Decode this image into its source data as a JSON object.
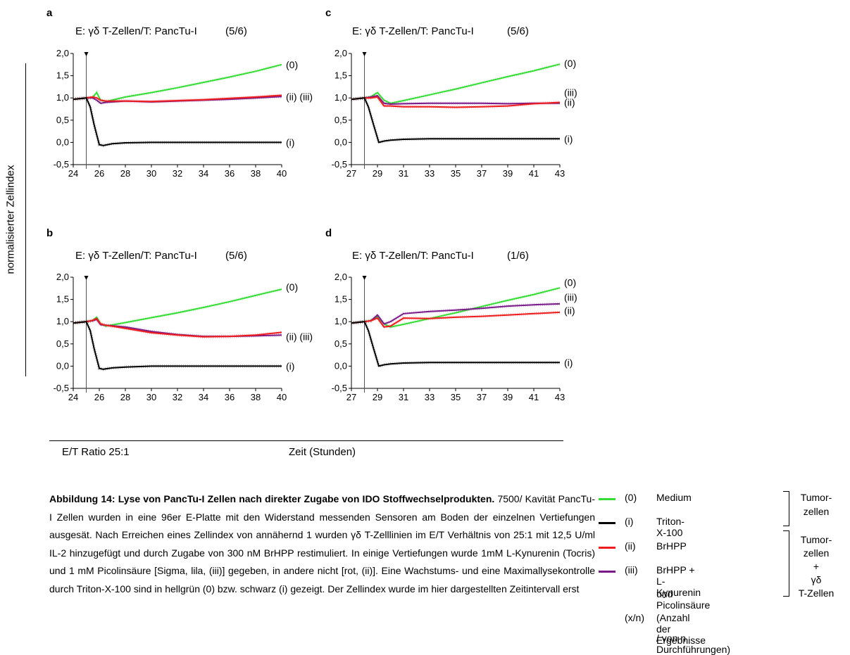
{
  "ylabel": "normalisierter Zellindex",
  "xlabel": "Zeit (Stunden)",
  "ratio_label": "E/T Ratio 25:1",
  "chart_data": [
    {
      "panel": "a",
      "type": "line",
      "title": "E: γδ T-Zellen/T: PancTu-I",
      "count": "(5/6)",
      "xlim": [
        24,
        40
      ],
      "xticks": [
        "24",
        "26",
        "28",
        "30",
        "32",
        "34",
        "36",
        "38",
        "40"
      ],
      "ylim": [
        -0.5,
        2.0
      ],
      "yticks": [
        "-0,5",
        "0,0",
        "0,5",
        "1,0",
        "1,5",
        "2,0"
      ],
      "marker_x": 25,
      "series": [
        {
          "label": "(0)",
          "color": "#33dd33",
          "x": [
            24,
            25,
            25.5,
            25.8,
            26.1,
            26.5,
            28,
            30,
            32,
            34,
            36,
            38,
            40
          ],
          "y": [
            0.97,
            1.0,
            1.02,
            1.12,
            0.95,
            0.92,
            1.02,
            1.12,
            1.23,
            1.35,
            1.47,
            1.6,
            1.75
          ]
        },
        {
          "label": "(iii)",
          "color": "#7a1a8a",
          "x": [
            24,
            25,
            25.5,
            25.8,
            26.1,
            26.5,
            28,
            30,
            32,
            34,
            36,
            38,
            40
          ],
          "y": [
            0.97,
            1.0,
            1.0,
            0.95,
            0.88,
            0.9,
            0.93,
            0.91,
            0.93,
            0.95,
            0.97,
            1.0,
            1.03
          ]
        },
        {
          "label": "(ii)",
          "color": "#ee1c1c",
          "x": [
            24,
            25,
            25.5,
            25.8,
            26.1,
            26.5,
            28,
            30,
            32,
            34,
            36,
            38,
            40
          ],
          "y": [
            0.97,
            1.0,
            1.02,
            1.0,
            0.95,
            0.93,
            0.93,
            0.92,
            0.94,
            0.96,
            0.99,
            1.02,
            1.06
          ]
        },
        {
          "label": "(i)",
          "color": "#000000",
          "x": [
            24,
            25,
            25.3,
            25.6,
            26,
            26.3,
            27,
            28,
            30,
            32,
            34,
            36,
            38,
            40
          ],
          "y": [
            0.97,
            1.0,
            0.8,
            0.4,
            -0.05,
            -0.07,
            -0.03,
            -0.01,
            0.0,
            0.0,
            0.0,
            0.0,
            0.0,
            0.0
          ]
        }
      ],
      "labels": [
        {
          "text": "(0)",
          "y": 1.75
        },
        {
          "text": "(ii) (iii)",
          "y": 1.03
        },
        {
          "text": "(i)",
          "y": 0.0
        }
      ]
    },
    {
      "panel": "c",
      "type": "line",
      "title": "E: γδ T-Zellen/T: PancTu-I",
      "count": "(5/6)",
      "xlim": [
        27,
        43
      ],
      "xticks": [
        "27",
        "29",
        "31",
        "33",
        "35",
        "37",
        "39",
        "41",
        "43"
      ],
      "ylim": [
        -0.5,
        2.0
      ],
      "yticks": [
        "-0,5",
        "0,0",
        "0,5",
        "1,0",
        "1,5",
        "2,0"
      ],
      "marker_x": 28,
      "series": [
        {
          "label": "(0)",
          "color": "#33dd33",
          "x": [
            27,
            28,
            28.5,
            29,
            29.5,
            30,
            31,
            33,
            35,
            37,
            39,
            41,
            43
          ],
          "y": [
            0.97,
            1.0,
            1.03,
            1.12,
            0.95,
            0.88,
            0.94,
            1.07,
            1.2,
            1.34,
            1.48,
            1.61,
            1.76
          ]
        },
        {
          "label": "(iii)",
          "color": "#7a1a8a",
          "x": [
            27,
            28,
            28.5,
            29,
            29.5,
            30,
            31,
            33,
            35,
            37,
            39,
            41,
            43
          ],
          "y": [
            0.97,
            1.0,
            1.02,
            1.05,
            0.88,
            0.86,
            0.87,
            0.88,
            0.88,
            0.88,
            0.87,
            0.88,
            0.88
          ]
        },
        {
          "label": "(ii)",
          "color": "#ee1c1c",
          "x": [
            27,
            28,
            28.5,
            29,
            29.5,
            30,
            31,
            33,
            35,
            37,
            39,
            41,
            43
          ],
          "y": [
            0.97,
            1.0,
            1.0,
            1.02,
            0.82,
            0.82,
            0.8,
            0.8,
            0.79,
            0.8,
            0.82,
            0.87,
            0.9
          ]
        },
        {
          "label": "(i)",
          "color": "#000000",
          "x": [
            27,
            28,
            28.3,
            28.7,
            29.1,
            29.5,
            30,
            31,
            33,
            35,
            37,
            39,
            41,
            43
          ],
          "y": [
            0.97,
            1.0,
            0.8,
            0.4,
            0.0,
            0.03,
            0.05,
            0.07,
            0.08,
            0.08,
            0.08,
            0.08,
            0.08,
            0.08
          ]
        }
      ],
      "labels": [
        {
          "text": "(0)",
          "y": 1.78
        },
        {
          "text": "(iii)",
          "y": 1.12
        },
        {
          "text": "(ii)",
          "y": 0.9
        },
        {
          "text": "(i)",
          "y": 0.08
        }
      ]
    },
    {
      "panel": "b",
      "type": "line",
      "title": "E: γδ T-Zellen/T: PancTu-I",
      "count": "(5/6)",
      "xlim": [
        24,
        40
      ],
      "xticks": [
        "24",
        "26",
        "28",
        "30",
        "32",
        "34",
        "36",
        "38",
        "40"
      ],
      "ylim": [
        -0.5,
        2.0
      ],
      "yticks": [
        "-0,5",
        "0,0",
        "0,5",
        "1,0",
        "1,5",
        "2,0"
      ],
      "marker_x": 25,
      "series": [
        {
          "label": "(0)",
          "color": "#33dd33",
          "x": [
            24,
            25,
            25.5,
            25.8,
            26.1,
            26.5,
            28,
            30,
            32,
            34,
            36,
            38,
            40
          ],
          "y": [
            0.97,
            1.0,
            1.03,
            1.1,
            0.95,
            0.9,
            0.98,
            1.09,
            1.2,
            1.32,
            1.45,
            1.59,
            1.73
          ]
        },
        {
          "label": "(iii)",
          "color": "#7a1a8a",
          "x": [
            24,
            25,
            25.5,
            25.8,
            26.1,
            26.5,
            28,
            30,
            32,
            34,
            36,
            38,
            40
          ],
          "y": [
            0.97,
            1.0,
            1.02,
            1.05,
            0.93,
            0.92,
            0.88,
            0.78,
            0.71,
            0.67,
            0.67,
            0.68,
            0.7
          ]
        },
        {
          "label": "(ii)",
          "color": "#ee1c1c",
          "x": [
            24,
            25,
            25.5,
            25.8,
            26.1,
            26.5,
            28,
            30,
            32,
            34,
            36,
            38,
            40
          ],
          "y": [
            0.97,
            1.0,
            1.03,
            1.07,
            0.95,
            0.92,
            0.85,
            0.75,
            0.7,
            0.66,
            0.67,
            0.7,
            0.76
          ]
        },
        {
          "label": "(i)",
          "color": "#000000",
          "x": [
            24,
            25,
            25.3,
            25.6,
            26,
            26.3,
            27,
            28,
            30,
            32,
            34,
            36,
            38,
            40
          ],
          "y": [
            0.97,
            1.0,
            0.8,
            0.4,
            -0.05,
            -0.07,
            -0.04,
            -0.02,
            0.0,
            0.0,
            0.0,
            0.0,
            0.0,
            0.0
          ]
        }
      ],
      "labels": [
        {
          "text": "(0)",
          "y": 1.78
        },
        {
          "text": "(ii) (iii)",
          "y": 0.66
        },
        {
          "text": "(i)",
          "y": 0.0
        }
      ]
    },
    {
      "panel": "d",
      "type": "line",
      "title": "E: γδ T-Zellen/T: PancTu-I",
      "count": "(1/6)",
      "xlim": [
        27,
        43
      ],
      "xticks": [
        "27",
        "29",
        "31",
        "33",
        "35",
        "37",
        "39",
        "41",
        "43"
      ],
      "ylim": [
        -0.5,
        2.0
      ],
      "yticks": [
        "-0,5",
        "0,0",
        "0,5",
        "1,0",
        "1,5",
        "2,0"
      ],
      "marker_x": 28,
      "series": [
        {
          "label": "(0)",
          "color": "#33dd33",
          "x": [
            27,
            28,
            28.5,
            29,
            29.5,
            30,
            31,
            33,
            35,
            37,
            39,
            41,
            43
          ],
          "y": [
            0.97,
            1.0,
            1.03,
            1.12,
            0.95,
            0.88,
            0.94,
            1.07,
            1.2,
            1.34,
            1.48,
            1.61,
            1.76
          ]
        },
        {
          "label": "(iii)",
          "color": "#7a1a8a",
          "x": [
            27,
            28,
            28.5,
            29,
            29.5,
            30,
            31,
            33,
            35,
            37,
            39,
            41,
            43
          ],
          "y": [
            0.97,
            1.0,
            1.02,
            1.15,
            0.95,
            1.0,
            1.18,
            1.23,
            1.26,
            1.3,
            1.35,
            1.38,
            1.4
          ]
        },
        {
          "label": "(ii)",
          "color": "#ee1c1c",
          "x": [
            27,
            28,
            28.5,
            29,
            29.5,
            30,
            31,
            33,
            35,
            37,
            39,
            41,
            43
          ],
          "y": [
            0.97,
            1.0,
            1.02,
            1.08,
            0.88,
            0.9,
            1.08,
            1.07,
            1.1,
            1.12,
            1.15,
            1.18,
            1.21
          ]
        },
        {
          "label": "(i)",
          "color": "#000000",
          "x": [
            27,
            28,
            28.3,
            28.7,
            29.1,
            29.5,
            30,
            31,
            33,
            35,
            37,
            39,
            41,
            43
          ],
          "y": [
            0.97,
            1.0,
            0.8,
            0.4,
            0.0,
            0.03,
            0.05,
            0.07,
            0.08,
            0.08,
            0.08,
            0.08,
            0.08,
            0.08
          ]
        }
      ],
      "labels": [
        {
          "text": "(0)",
          "y": 1.88
        },
        {
          "text": "(iii)",
          "y": 1.55
        },
        {
          "text": "(ii)",
          "y": 1.25
        },
        {
          "text": "(i)",
          "y": 0.08
        }
      ]
    }
  ],
  "caption": {
    "bold": "Abbildung 14: Lyse von PancTu-I Zellen nach direkter Zugabe von IDO Stoffwechselprodukten.",
    "text": " 7500/ Kavität PancTu-I Zellen wurden in eine 96er E-Platte mit den Widerstand messenden Sensoren am Boden der einzelnen Vertiefungen ausgesät. Nach Erreichen eines Zellindex von annähernd 1 wurden γδ T-Zelllinien im E/T Verhältnis von 25:1 mit 12,5 U/ml IL-2 hinzugefügt und durch Zugabe von 300 nM BrHPP restimuliert. In einige Vertiefungen wurde 1mM L-Kynurenin (Tocris) und 1 mM Picolinsäure [Sigma, lila, (iii)] gegeben, in andere nicht [rot, (ii)]. Eine Wachstums- und eine Maximallysekontrolle durch Triton-X-100 sind in hellgrün (0) bzw. schwarz (i) gezeigt. Der Zellindex wurde im hier dargestellten Zeitintervall erst"
  },
  "legend": [
    {
      "code": "(0)",
      "text": "Medium",
      "color": "#33dd33"
    },
    {
      "code": "(i)",
      "text": "Triton-X-100",
      "color": "#000000"
    },
    {
      "code": "(ii)",
      "text": "BrHPP",
      "color": "#ee1c1c"
    },
    {
      "code": "(iii)",
      "text": "BrHPP + L-Kynurenin",
      "color": "#7a1a8a"
    },
    {
      "code": "",
      "text": "und Picolinsäure",
      "color": ""
    },
    {
      "code": "(x/n)",
      "text": "(Anzahl der Ergebnisse",
      "color": ""
    },
    {
      "code": "",
      "text": "/ von n Durchführungen)",
      "color": ""
    }
  ],
  "groups": {
    "tumor": "Tumor-\nzellen",
    "tumor_t": "Tumor-\nzellen\n+\nγδ\nT-Zellen"
  }
}
